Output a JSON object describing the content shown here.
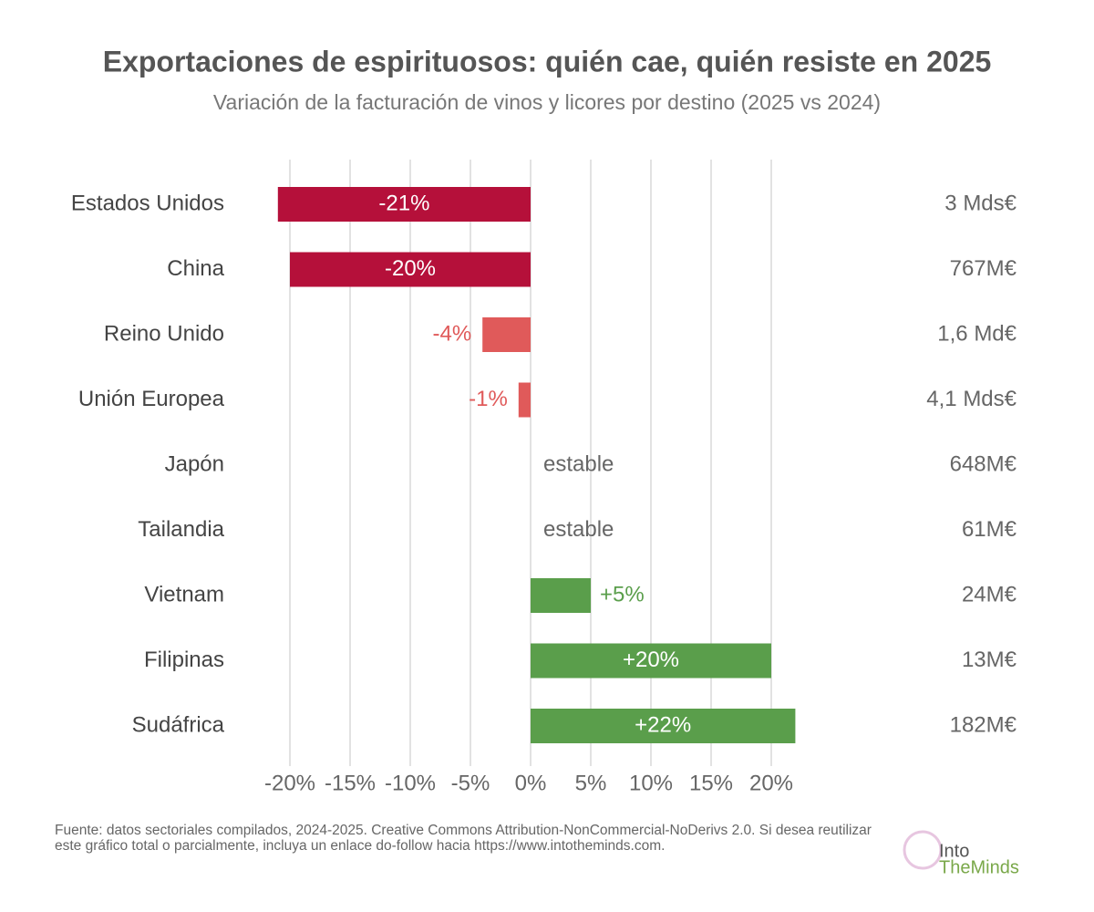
{
  "chart_data": {
    "type": "hbar",
    "title": "Exportaciones de espirituosos: quién cae, quién resiste en 2025",
    "subtitle": "Variación de la facturación de vinos y licores por destino (2025 vs 2024)",
    "categories": [
      "Estados Unidos",
      "China",
      "Reino Unido",
      "Unión Europea",
      "Japón",
      "Tailandia",
      "Vietnam",
      "Filipinas",
      "Sudáfrica"
    ],
    "values": [
      -21,
      -20,
      -4,
      -1,
      0,
      0,
      5,
      20,
      22
    ],
    "value_labels": [
      "-21%",
      "-20%",
      "-4%",
      "-1%",
      "estable",
      "estable",
      "+5%",
      "+20%",
      "+22%"
    ],
    "colors": [
      "#b5103a",
      "#b5103a",
      "#e05a5a",
      "#e05a5a",
      "#666666",
      "#666666",
      "#5a9e4b",
      "#5a9e4b",
      "#5a9e4b"
    ],
    "revenue_labels": [
      "3 Mds€",
      "767M€",
      "1,6 Md€",
      "4,1 Mds€",
      "648M€",
      "61M€",
      "24M€",
      "13M€",
      "182M€"
    ],
    "xlim": [
      -22,
      22
    ],
    "xticks": [
      {
        "value": -20,
        "label": "-20%"
      },
      {
        "value": -15,
        "label": "-15%"
      },
      {
        "value": -10,
        "label": "-10%"
      },
      {
        "value": -5,
        "label": "-5%"
      },
      {
        "value": 0,
        "label": "0%"
      },
      {
        "value": 5,
        "label": "5%"
      },
      {
        "value": 10,
        "label": "10%"
      },
      {
        "value": 15,
        "label": "15%"
      },
      {
        "value": 20,
        "label": "20%"
      }
    ],
    "grid": true,
    "source": "Fuente: datos sectoriales compilados, 2024-2025. Creative Commons Attribution-NonCommercial-NoDerivs 2.0. Si desea reutilizar este gráfico total o parcialmente, incluya un enlace do-follow hacia https://www.intotheminds.com.",
    "logo": [
      "Into",
      "TheMinds"
    ]
  }
}
